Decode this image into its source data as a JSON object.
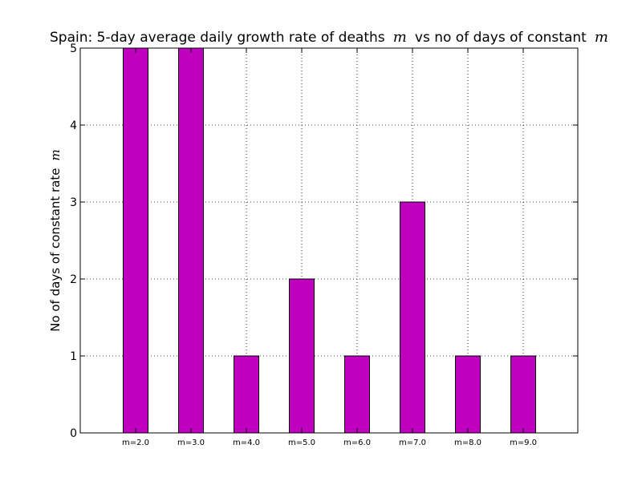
{
  "chart_data": {
    "type": "bar",
    "title": "Spain: 5-day average daily growth rate of deaths",
    "title_symbol": "m",
    "title_middle": "vs no of days of constant",
    "title_symbol_end": "m",
    "ylabel": "No of days of constant rate",
    "ylabel_symbol": "m",
    "xlabel": "",
    "categories": [
      "m=2.0",
      "m=3.0",
      "m=4.0",
      "m=5.0",
      "m=6.0",
      "m=7.0",
      "m=8.0",
      "m=9.0"
    ],
    "values": [
      5,
      5,
      1,
      2,
      1,
      3,
      1,
      1
    ],
    "ylim": [
      0,
      5
    ],
    "yticks": [
      "0",
      "1",
      "2",
      "3",
      "4",
      "5"
    ],
    "bar_color": "#bf00bf",
    "grid": true,
    "legend": "none"
  }
}
